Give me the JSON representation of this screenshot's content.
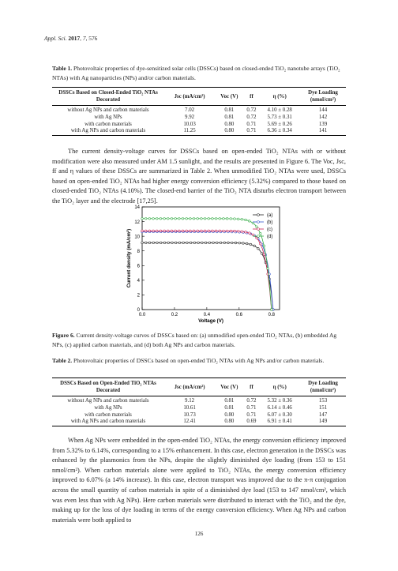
{
  "header": {
    "journal": "Appl. Sci.",
    "year": "2017",
    "volume": "7",
    "page": "576"
  },
  "table1": {
    "label": "Table 1.",
    "caption": "Photovoltaic properties of dye-sensitized solar cells (DSSCs) based on closed-ended TiO₂ nanotube arrays (TiO₂ NTAs) with Ag nanoparticles (NPs) and/or carbon materials.",
    "headers": [
      "DSSCs Based on Closed-Ended TiO₂ NTAs Decorated",
      "Jsc (mA/cm²)",
      "Voc (V)",
      "ff",
      "η (%)",
      "Dye Loading (nmol/cm²)"
    ],
    "rows": [
      [
        "without Ag NPs and carbon materials",
        "7.02",
        "0.81",
        "0.72",
        "4.10 ± 0.28",
        "144"
      ],
      [
        "with Ag NPs",
        "9.92",
        "0.81",
        "0.72",
        "5.73 ± 0.31",
        "142"
      ],
      [
        "with carbon materials",
        "10.03",
        "0.80",
        "0.71",
        "5.69 ± 0.26",
        "139"
      ],
      [
        "with Ag NPs and carbon materials",
        "11.25",
        "0.80",
        "0.71",
        "6.36 ± 0.34",
        "141"
      ]
    ]
  },
  "para1": {
    "text": "The current density-voltage curves for DSSCs based on open-ended TiO₂ NTAs with or without modification were also measured under AM 1.5 sunlight, and the results are presented in Figure 6. The Voc, Jsc, ff and η values of these DSSCs are summarized in Table 2. When unmodified TiO₂ NTAs were used, DSSCs based on open-ended TiO₂ NTAs had higher energy conversion efficiency (5.32%) compared to those based on closed-ended TiO₂ NTAs (4.10%). The closed-end barrier of the TiO₂ NTA disturbs electron transport between the TiO₂ layer and the electrode [17,25]."
  },
  "figure6": {
    "label": "Figure 6.",
    "caption": "Current density-voltage curves of DSSCs based on: (a) unmodified open-ended TiO₂ NTAs, (b) embedded Ag NPs, (c) applied carbon materials, and (d) both Ag NPs and carbon materials."
  },
  "chart_data": {
    "type": "line",
    "xlabel": "Voltage (V)",
    "ylabel": "Current density (mA/cm²)",
    "xlim": [
      0,
      0.85
    ],
    "ylim": [
      0,
      14
    ],
    "xticks": [
      "0.0",
      "0.2",
      "0.4",
      "0.6",
      "0.8"
    ],
    "yticks": [
      "0",
      "2",
      "4",
      "6",
      "8",
      "10",
      "12",
      "14"
    ],
    "legend_position": "top-right",
    "series": [
      {
        "name": "(a)",
        "color": "#222222",
        "jsc": 9.12,
        "voc": 0.81
      },
      {
        "name": "(b)",
        "color": "#3355cc",
        "jsc": 10.61,
        "voc": 0.81
      },
      {
        "name": "(c)",
        "color": "#cc2255",
        "jsc": 10.73,
        "voc": 0.8
      },
      {
        "name": "(d)",
        "color": "#33aa44",
        "jsc": 12.41,
        "voc": 0.8
      }
    ]
  },
  "table2": {
    "label": "Table 2.",
    "caption": "Photovoltaic properties of DSSCs based on open-ended TiO₂ NTAs with Ag NPs and/or carbon materials.",
    "headers": [
      "DSSCs Based on Open-Ended TiO₂ NTAs Decorated",
      "Jsc (mA/cm²)",
      "Voc (V)",
      "ff",
      "η (%)",
      "Dye Loading (nmol/cm²)"
    ],
    "rows": [
      [
        "without Ag NPs and carbon materials",
        "9.12",
        "0.81",
        "0.72",
        "5.32 ± 0.36",
        "153"
      ],
      [
        "with Ag NPs",
        "10.61",
        "0.81",
        "0.71",
        "6.14 ± 0.46",
        "151"
      ],
      [
        "with carbon materials",
        "10.73",
        "0.80",
        "0.71",
        "6.07 ± 0.30",
        "147"
      ],
      [
        "with Ag NPs and carbon materials",
        "12.41",
        "0.80",
        "0.69",
        "6.91 ± 0.41",
        "149"
      ]
    ]
  },
  "para2": {
    "text": "When Ag NPs were embedded in the open-ended TiO₂ NTAs, the energy conversion efficiency improved from 5.32% to 6.14%, corresponding to a 15% enhancement. In this case, electron generation in the DSSCs was enhanced by the plasmonics from the NPs, despite the slightly diminished dye loading (from 153 to 151 nmol/cm²). When carbon materials alone were applied to TiO₂ NTAs, the energy conversion efficiency improved to 6.07% (a 14% increase). In this case, electron transport was improved due to the π-π conjugation across the small quantity of carbon materials in spite of a diminished dye load (153 to 147 nmol/cm², which was even less than with Ag NPs). Here carbon materials were distributed to interact with the TiO₂ and the dye, making up for the loss of dye loading in terms of the energy conversion efficiency. When Ag NPs and carbon materials were both applied to"
  },
  "page_number": "126"
}
